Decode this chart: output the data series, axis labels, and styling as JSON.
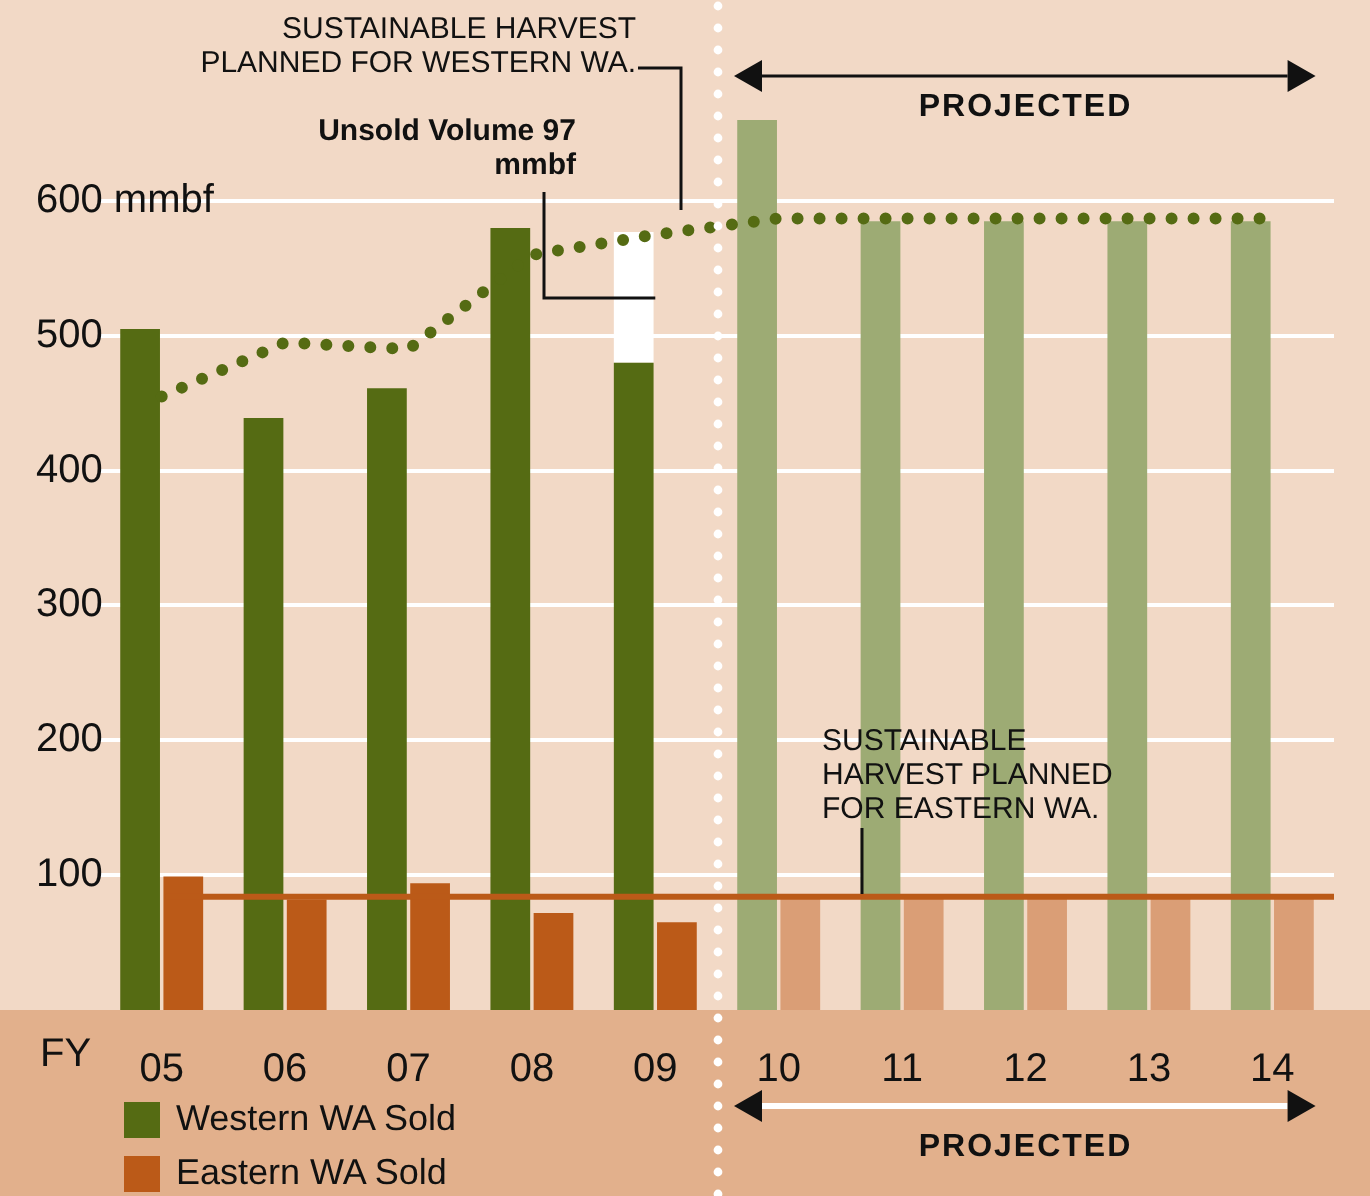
{
  "chart_data": {
    "type": "bar",
    "xlabel": "FY",
    "categories": [
      "05",
      "06",
      "07",
      "08",
      "09",
      "10",
      "11",
      "12",
      "13",
      "14"
    ],
    "series": [
      {
        "name": "Western WA Sold",
        "type": "bar",
        "color": "#556b13",
        "colors": [
          "#556b13",
          "#556b13",
          "#556b13",
          "#556b13",
          "#556b13",
          "#9dab74",
          "#9dab74",
          "#9dab74",
          "#9dab74",
          "#9dab74"
        ],
        "values": [
          505,
          439,
          461,
          580,
          480,
          660,
          585,
          585,
          585,
          585
        ]
      },
      {
        "type": "bar",
        "color": "#ffffff",
        "values": [
          null,
          null,
          null,
          null,
          97,
          null,
          null,
          null,
          null,
          null
        ],
        "base": [
          null,
          null,
          null,
          null,
          480,
          null,
          null,
          null,
          null,
          null
        ]
      },
      {
        "name": "Eastern WA Sold",
        "type": "bar",
        "color": "#bb5a18",
        "colors": [
          "#bb5a18",
          "#bb5a18",
          "#bb5a18",
          "#bb5a18",
          "#bb5a18",
          "#da9e76",
          "#da9e76",
          "#da9e76",
          "#da9e76",
          "#da9e76"
        ],
        "values": [
          99,
          82,
          94,
          72,
          65,
          83,
          83,
          83,
          83,
          83
        ]
      },
      {
        "type": "line",
        "color": "#556b13",
        "line_style": "dotted",
        "marker": "none",
        "values": [
          455,
          495,
          490,
          560,
          575,
          587,
          587,
          587,
          587,
          587
        ]
      }
    ],
    "ref_lines": [
      {
        "axis": "y",
        "value": 84,
        "color": "#bb5a18",
        "label": "SUSTAINABLE HARVEST PLANNED FOR EASTERN WA."
      }
    ],
    "annotations": [
      "SUSTAINABLE HARVEST PLANNED FOR WESTERN WA.",
      {
        "text": "Unsold Volume 97 mmbf",
        "x": "09",
        "y": 528
      },
      "PROJECTED",
      "PROJECTED"
    ],
    "ylim": [
      0,
      660
    ],
    "yticks": [
      100,
      200,
      300,
      400,
      500,
      {
        "value": 600,
        "label": "600 mmbf"
      }
    ],
    "grid": "y",
    "legend": "bottom left"
  }
}
